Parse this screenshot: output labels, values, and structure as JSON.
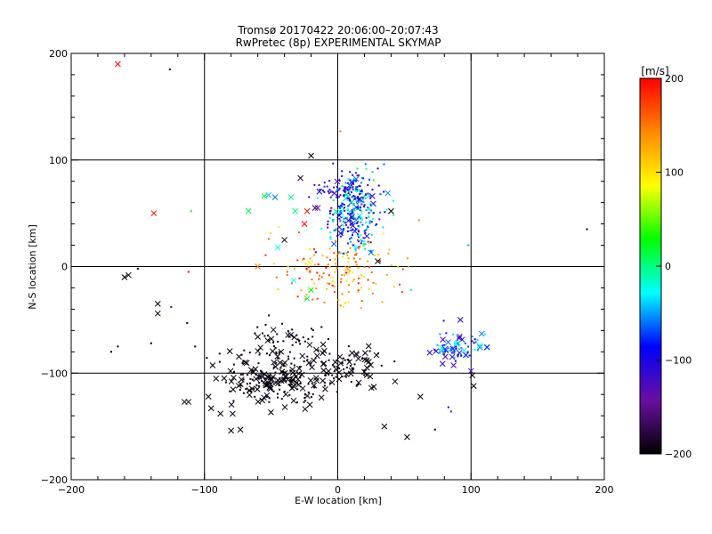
{
  "chart_data": {
    "type": "scatter",
    "title": "Tromsø 20170422 20:06:00–20:07:43",
    "subtitle": "RwPretec (8p) EXPERIMENTAL SKYMAP",
    "xlabel": "E-W location [km]",
    "ylabel": "N-S location [km]",
    "xlim": [
      -200,
      200
    ],
    "ylim": [
      -200,
      200
    ],
    "x_ticks": [
      -200,
      -100,
      0,
      100,
      200
    ],
    "y_ticks": [
      -200,
      -100,
      0,
      100,
      200
    ],
    "grid": true,
    "colorbar": {
      "label": "[m/s]",
      "min": -200,
      "max": 200,
      "ticks": [
        -200,
        -100,
        0,
        100,
        200
      ],
      "stops": [
        "#000000",
        "#6a0fa0",
        "#0000ff",
        "#00ffff",
        "#00ff00",
        "#ffff00",
        "#ff8800",
        "#ff0000"
      ]
    },
    "clusters": [
      {
        "name": "north-core",
        "cx": 12,
        "cy": 50,
        "sx": 10,
        "sy": 18,
        "n": 300,
        "vmin": -130,
        "vmax": 10,
        "cross_frac": 0.08
      },
      {
        "name": "north-upper",
        "cx": 5,
        "cy": 72,
        "sx": 12,
        "sy": 5,
        "n": 60,
        "vmin": -150,
        "vmax": -60,
        "cross_frac": 0.05
      },
      {
        "name": "center-red",
        "cx": 0,
        "cy": -5,
        "sx": 25,
        "sy": 17,
        "n": 150,
        "vmin": 90,
        "vmax": 200,
        "cross_frac": 0.05
      },
      {
        "name": "east-blue",
        "cx": 88,
        "cy": -75,
        "sx": 10,
        "sy": 8,
        "n": 70,
        "vmin": -130,
        "vmax": -20,
        "cross_frac": 0.35
      },
      {
        "name": "southwest-black",
        "cx": -45,
        "cy": -105,
        "sx": 23,
        "sy": 13,
        "n": 240,
        "vmin": -200,
        "vmax": -190,
        "cross_frac": 0.45
      },
      {
        "name": "south-mid-black",
        "cx": 10,
        "cy": -92,
        "sx": 15,
        "sy": 10,
        "n": 60,
        "vmin": -200,
        "vmax": -190,
        "cross_frac": 0.4
      },
      {
        "name": "upper-black",
        "cx": -38,
        "cy": -70,
        "sx": 15,
        "sy": 8,
        "n": 50,
        "vmin": -200,
        "vmax": -190,
        "cross_frac": 0.15
      }
    ],
    "points": [
      {
        "x": -165,
        "y": 190,
        "v": 200,
        "m": "x"
      },
      {
        "x": -126,
        "y": 185,
        "v": -200,
        "m": "."
      },
      {
        "x": -138,
        "y": 50,
        "v": 190,
        "m": "x"
      },
      {
        "x": -110,
        "y": 52,
        "v": 20,
        "m": "."
      },
      {
        "x": -112,
        "y": -5,
        "v": 200,
        "m": "."
      },
      {
        "x": -160,
        "y": -10,
        "v": -200,
        "m": "x"
      },
      {
        "x": -157,
        "y": -8,
        "v": -200,
        "m": "x"
      },
      {
        "x": -150,
        "y": -2,
        "v": -200,
        "m": "."
      },
      {
        "x": -135,
        "y": -35,
        "v": -200,
        "m": "x"
      },
      {
        "x": -135,
        "y": -44,
        "v": -200,
        "m": "x"
      },
      {
        "x": -125,
        "y": -38,
        "v": -100,
        "m": "."
      },
      {
        "x": -113,
        "y": -53,
        "v": -200,
        "m": "."
      },
      {
        "x": -107,
        "y": -75,
        "v": -200,
        "m": "."
      },
      {
        "x": -165,
        "y": -75,
        "v": -200,
        "m": "."
      },
      {
        "x": -170,
        "y": -80,
        "v": -200,
        "m": "."
      },
      {
        "x": -140,
        "y": -72,
        "v": -200,
        "m": "."
      },
      {
        "x": -115,
        "y": -127,
        "v": -200,
        "m": "x"
      },
      {
        "x": -112,
        "y": -127,
        "v": -200,
        "m": "x"
      },
      {
        "x": -97,
        "y": -122,
        "v": -200,
        "m": "x"
      },
      {
        "x": -95,
        "y": -133,
        "v": -200,
        "m": "x"
      },
      {
        "x": -88,
        "y": -138,
        "v": -200,
        "m": "x"
      },
      {
        "x": -80,
        "y": -154,
        "v": -200,
        "m": "x"
      },
      {
        "x": -73,
        "y": -153,
        "v": -200,
        "m": "x"
      },
      {
        "x": -60,
        "y": -66,
        "v": -200,
        "m": "x"
      },
      {
        "x": -20,
        "y": 104,
        "v": -200,
        "m": "x"
      },
      {
        "x": -28,
        "y": 83,
        "v": -180,
        "m": "x"
      },
      {
        "x": -35,
        "y": 65,
        "v": 0,
        "m": "x"
      },
      {
        "x": -55,
        "y": 66,
        "v": 20,
        "m": "x"
      },
      {
        "x": -52,
        "y": 67,
        "v": -40,
        "m": "x"
      },
      {
        "x": -47,
        "y": 65,
        "v": -60,
        "m": "x"
      },
      {
        "x": -67,
        "y": 52,
        "v": 10,
        "m": "x"
      },
      {
        "x": -32,
        "y": 52,
        "v": 0,
        "m": "x"
      },
      {
        "x": -23,
        "y": 52,
        "v": 190,
        "m": "x"
      },
      {
        "x": -17,
        "y": 55,
        "v": -170,
        "m": "x"
      },
      {
        "x": -15,
        "y": 55,
        "v": -140,
        "m": "x"
      },
      {
        "x": -25,
        "y": 40,
        "v": 200,
        "m": "x"
      },
      {
        "x": -40,
        "y": 25,
        "v": -200,
        "m": "x"
      },
      {
        "x": -45,
        "y": 18,
        "v": -20,
        "m": "x"
      },
      {
        "x": -60,
        "y": 0,
        "v": 150,
        "m": "x"
      },
      {
        "x": -33,
        "y": -13,
        "v": -20,
        "m": "x"
      },
      {
        "x": -23,
        "y": -30,
        "v": 10,
        "m": "x"
      },
      {
        "x": -20,
        "y": -22,
        "v": 30,
        "m": "x"
      },
      {
        "x": 2,
        "y": 127,
        "v": 150,
        "m": "."
      },
      {
        "x": 40,
        "y": 52,
        "v": -200,
        "m": "x"
      },
      {
        "x": 30,
        "y": 5,
        "v": -200,
        "m": "x"
      },
      {
        "x": 55,
        "y": -22,
        "v": 0,
        "m": "."
      },
      {
        "x": 98,
        "y": 20,
        "v": -50,
        "m": "."
      },
      {
        "x": 187,
        "y": 35,
        "v": -200,
        "m": "."
      },
      {
        "x": 35,
        "y": -150,
        "v": -200,
        "m": "x"
      },
      {
        "x": 52,
        "y": -160,
        "v": -200,
        "m": "x"
      },
      {
        "x": 62,
        "y": -122,
        "v": -200,
        "m": "x"
      },
      {
        "x": 73,
        "y": -153,
        "v": -200,
        "m": "."
      },
      {
        "x": 83,
        "y": -132,
        "v": -90,
        "m": "."
      },
      {
        "x": 85,
        "y": -136,
        "v": -140,
        "m": "."
      },
      {
        "x": 102,
        "y": -112,
        "v": -200,
        "m": "x"
      },
      {
        "x": 101,
        "y": -102,
        "v": -200,
        "m": "x"
      },
      {
        "x": 100,
        "y": -98,
        "v": -130,
        "m": "x"
      },
      {
        "x": 108,
        "y": -63,
        "v": -60,
        "m": "x"
      },
      {
        "x": 92,
        "y": -50,
        "v": -100,
        "m": "x"
      }
    ]
  }
}
